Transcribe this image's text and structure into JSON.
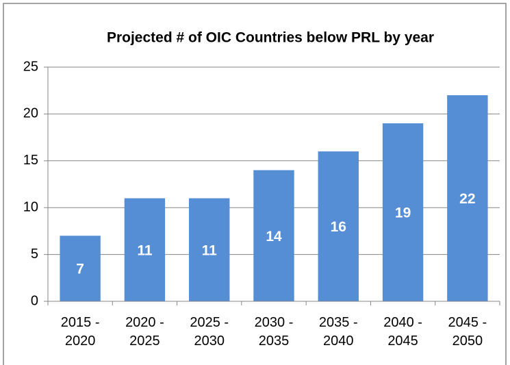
{
  "chart_data": {
    "type": "bar",
    "title": "Projected # of OIC Countries below PRL by year",
    "categories": [
      "2015 - 2020",
      "2020 - 2025",
      "2025 - 2030",
      "2030 - 2035",
      "2035 - 2040",
      "2040 - 2045",
      "2045 - 2050"
    ],
    "values": [
      7,
      11,
      11,
      14,
      16,
      19,
      22
    ],
    "color": "#558ed5",
    "ylim": [
      0,
      25
    ],
    "yticks": [
      0,
      5,
      10,
      15,
      20,
      25
    ],
    "grid": true
  }
}
